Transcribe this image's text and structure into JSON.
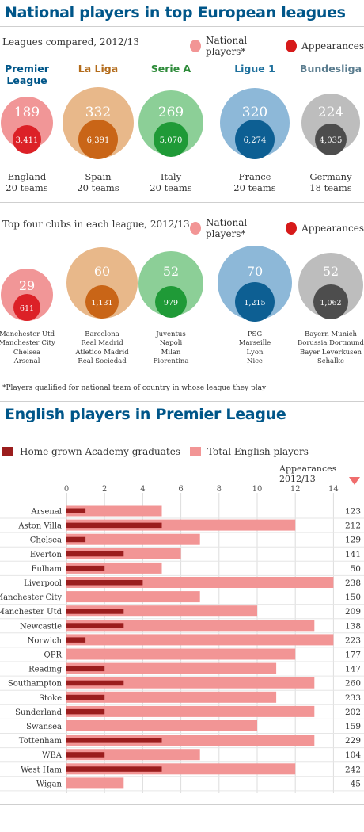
{
  "page_title": "National players in top European leagues",
  "leagues_subtitle": "Leagues compared, 2012/13",
  "legend": {
    "national_players": "National players*",
    "appearances": "Appearances"
  },
  "clubs_subtitle": "Top four clubs in each league, 2012/13",
  "footnote": "*Players qualified for national team of country in whose league they play",
  "colors": {
    "title": "#005689",
    "legend_national": "#f29595",
    "legend_appearances": "#d61a1a",
    "hg_bar": "#9b1d1d",
    "total_bar": "#f29595"
  },
  "leagues": [
    {
      "name_line1": "Premier",
      "name_line2": "League",
      "country": "England",
      "teams": "20 teams",
      "national_players": "189",
      "appearances": "3,411",
      "name_color": "#005689",
      "outer_color": "#f19697",
      "inner_color": "#dc2127"
    },
    {
      "name_line1": "La Liga",
      "name_line2": "",
      "country": "Spain",
      "teams": "20 teams",
      "national_players": "332",
      "appearances": "6,391",
      "name_color": "#b36b1a",
      "outer_color": "#e8b88a",
      "inner_color": "#c96517"
    },
    {
      "name_line1": "Serie A",
      "name_line2": "",
      "country": "Italy",
      "teams": "20 teams",
      "national_players": "269",
      "appearances": "5,070",
      "name_color": "#2e8b3a",
      "outer_color": "#8ccf97",
      "inner_color": "#1f9a37"
    },
    {
      "name_line1": "Ligue 1",
      "name_line2": "",
      "country": "France",
      "teams": "20 teams",
      "national_players": "320",
      "appearances": "6,274",
      "name_color": "#1d6f9c",
      "outer_color": "#8db8d8",
      "inner_color": "#0d5f93"
    },
    {
      "name_line1": "Bundesliga",
      "name_line2": "",
      "country": "Germany",
      "teams": "18 teams",
      "national_players": "224",
      "appearances": "4,035",
      "name_color": "#5b7d8f",
      "outer_color": "#bdbdbd",
      "inner_color": "#4d4d4d"
    }
  ],
  "top_clubs": [
    {
      "national_players": "29",
      "appearances": "611",
      "clubs": [
        "Manchester Utd",
        "Manchester City",
        "Chelsea",
        "Arsenal"
      ]
    },
    {
      "national_players": "60",
      "appearances": "1,131",
      "clubs": [
        "Barcelona",
        "Real Madrid",
        "Atletico Madrid",
        "Real Sociedad"
      ]
    },
    {
      "national_players": "52",
      "appearances": "979",
      "clubs": [
        "Juventus",
        "Napoli",
        "Milan",
        "Fiorentina"
      ]
    },
    {
      "national_players": "70",
      "appearances": "1,215",
      "clubs": [
        "PSG",
        "Marseille",
        "Lyon",
        "Nice"
      ]
    },
    {
      "national_players": "52",
      "appearances": "1,062",
      "clubs": [
        "Bayern Munich",
        "Borussia Dortmund",
        "Bayer Leverkusen",
        "Schalke"
      ]
    }
  ],
  "chart_data": {
    "type": "bar",
    "title": "English players in Premier League",
    "legend": [
      "Home grown Academy graduates",
      "Total English players"
    ],
    "legend_position": "top-left",
    "appearances_header": "Appearances 2012/13",
    "xlim": [
      0,
      14
    ],
    "x_ticks": [
      0,
      2,
      4,
      6,
      8,
      10,
      12,
      14
    ],
    "grid": true,
    "categories": [
      "Arsenal",
      "Aston Villa",
      "Chelsea",
      "Everton",
      "Fulham",
      "Liverpool",
      "Manchester City",
      "Manchester Utd",
      "Newcastle",
      "Norwich",
      "QPR",
      "Reading",
      "Southampton",
      "Stoke",
      "Sunderland",
      "Swansea",
      "Tottenham",
      "WBA",
      "West Ham",
      "Wigan"
    ],
    "series": [
      {
        "name": "Home grown Academy graduates",
        "values": [
          1,
          5,
          1,
          3,
          2,
          4,
          0,
          3,
          3,
          1,
          0,
          2,
          3,
          2,
          2,
          0,
          5,
          2,
          5,
          0
        ]
      },
      {
        "name": "Total English players",
        "values": [
          5,
          12,
          7,
          6,
          5,
          14,
          7,
          10,
          13,
          14,
          12,
          11,
          13,
          11,
          13,
          10,
          13,
          7,
          12,
          3
        ]
      }
    ],
    "appearances": [
      123,
      212,
      129,
      141,
      50,
      238,
      150,
      209,
      138,
      223,
      177,
      147,
      260,
      233,
      202,
      159,
      229,
      104,
      242,
      45
    ]
  }
}
